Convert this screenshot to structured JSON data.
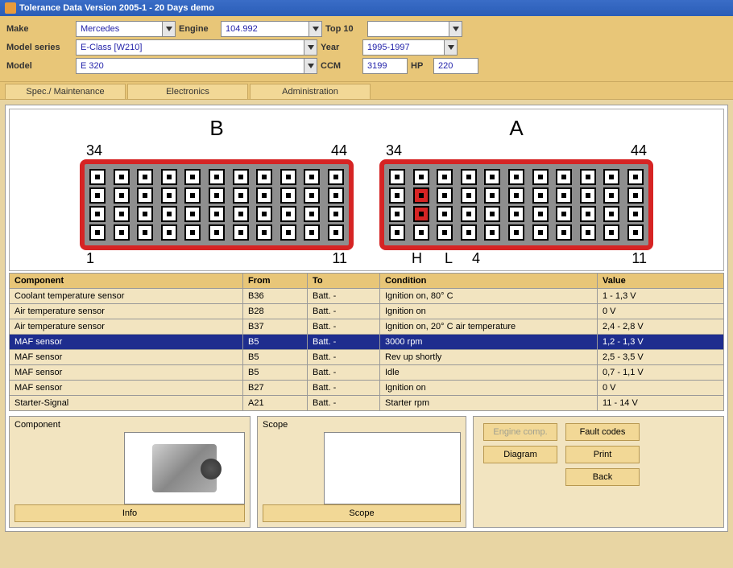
{
  "window": {
    "title": "Tolerance Data Version 2005-1 - 20 Days demo"
  },
  "filter": {
    "make_label": "Make",
    "make_value": "Mercedes",
    "engine_label": "Engine",
    "engine_value": "104.992",
    "top10_label": "Top 10",
    "top10_value": "",
    "series_label": "Model series",
    "series_value": "E-Class [W210]",
    "year_label": "Year",
    "year_value": "1995-1997",
    "model_label": "Model",
    "model_value": "E 320",
    "ccm_label": "CCM",
    "ccm_value": "3199",
    "hp_label": "HP",
    "hp_value": "220"
  },
  "tabs": [
    "Spec./ Maintenance",
    "Electronics",
    "Administration"
  ],
  "connectors": {
    "b": {
      "title": "B",
      "tl": "34",
      "tr": "44",
      "bl": "1",
      "br": "11"
    },
    "a": {
      "title": "A",
      "tl": "34",
      "tr": "44",
      "h": "H",
      "l": "L",
      "four": "4",
      "br": "11"
    }
  },
  "table": {
    "headers": [
      "Component",
      "From",
      "To",
      "Condition",
      "Value"
    ],
    "rows": [
      {
        "c": "Coolant temperature sensor",
        "f": "B36",
        "t": "Batt. -",
        "cond": "Ignition on, 80° C",
        "v": "1 - 1,3 V",
        "sel": false
      },
      {
        "c": "Air temperature sensor",
        "f": "B28",
        "t": "Batt. -",
        "cond": "Ignition on",
        "v": "0 V",
        "sel": false
      },
      {
        "c": "Air temperature sensor",
        "f": "B37",
        "t": "Batt. -",
        "cond": "Ignition on, 20° C air temperature",
        "v": "2,4 - 2,8 V",
        "sel": false
      },
      {
        "c": "MAF sensor",
        "f": "B5",
        "t": "Batt. -",
        "cond": "3000 rpm",
        "v": "1,2 - 1,3 V",
        "sel": true
      },
      {
        "c": "MAF sensor",
        "f": "B5",
        "t": "Batt. -",
        "cond": "Rev up shortly",
        "v": "2,5  - 3,5 V",
        "sel": false
      },
      {
        "c": "MAF sensor",
        "f": "B5",
        "t": "Batt. -",
        "cond": "Idle",
        "v": "0,7 - 1,1 V",
        "sel": false
      },
      {
        "c": "MAF sensor",
        "f": "B27",
        "t": "Batt. -",
        "cond": "Ignition on",
        "v": "0 V",
        "sel": false
      },
      {
        "c": "Starter-Signal",
        "f": "A21",
        "t": "Batt. -",
        "cond": "Starter rpm",
        "v": "11 - 14 V",
        "sel": false
      }
    ]
  },
  "bottom": {
    "component_label": "Component",
    "scope_label": "Scope",
    "info_btn": "Info",
    "scope_btn": "Scope",
    "engine_comp_btn": "Engine comp.",
    "fault_codes_btn": "Fault codes",
    "diagram_btn": "Diagram",
    "print_btn": "Print",
    "back_btn": "Back"
  },
  "colors": {
    "titlebar": "#2a5db7",
    "panel": "#e8c678",
    "cell_bg": "#f2e4c0",
    "selected": "#1e2d8e",
    "connector_border": "#d62424",
    "connector_bg": "#8e8e8e"
  }
}
